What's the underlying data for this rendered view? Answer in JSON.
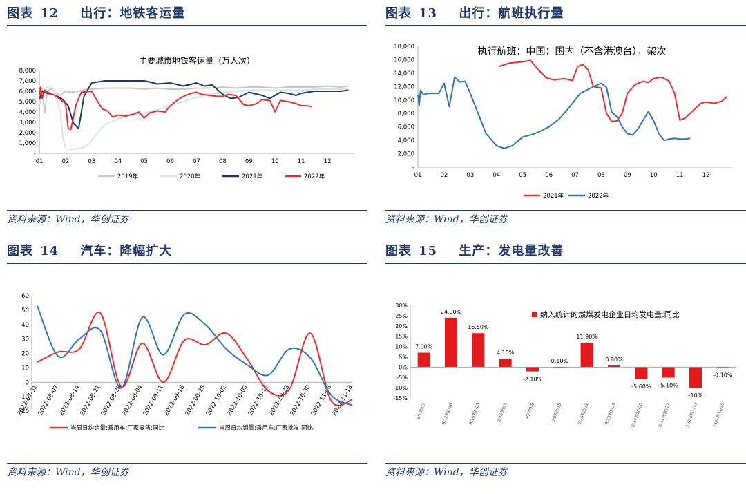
{
  "panels": [
    {
      "fig_label": "图表",
      "fig_num": "12",
      "fig_title": "出行：地铁客运量",
      "source": "资料来源：Wind，华创证券",
      "chart_data": {
        "type": "line",
        "title": "主要城市地铁客运量（万人次）",
        "x_ticks": [
          "01",
          "02",
          "03",
          "04",
          "05",
          "06",
          "07",
          "08",
          "09",
          "10",
          "11",
          "12"
        ],
        "x_range": [
          1,
          13
        ],
        "y_ticks": [
          "8,000",
          "7,000",
          "6,000",
          "5,000",
          "4,000",
          "3,000",
          "2,000",
          "1,000",
          "-"
        ],
        "ylim": [
          0,
          8000
        ],
        "legend_position": "bottom",
        "series": [
          {
            "name": "2019年",
            "color": "#c8c8c8",
            "x": [
              1.0,
              1.1,
              1.2,
              1.3,
              1.4,
              1.5,
              1.6,
              1.8,
              2.0,
              2.2,
              2.5,
              2.8,
              3.0,
              3.5,
              4.0,
              4.5,
              5.0,
              5.5,
              6.0,
              6.5,
              7.0,
              7.5,
              8.0,
              8.5,
              9.0,
              9.5,
              10.0,
              10.5,
              11.0,
              11.5,
              12.0,
              12.5,
              12.8
            ],
            "y": [
              4500,
              6300,
              3900,
              6000,
              6200,
              6200,
              5900,
              5600,
              6000,
              5900,
              6000,
              6200,
              6200,
              6300,
              6300,
              6300,
              6200,
              6300,
              6200,
              6200,
              6300,
              6300,
              6400,
              6300,
              6400,
              6400,
              6300,
              6400,
              6400,
              6400,
              6500,
              6400,
              6500
            ]
          },
          {
            "name": "2020年",
            "color": "#d6e4f0",
            "x": [
              1.0,
              1.2,
              1.4,
              1.6,
              1.8,
              1.9,
              2.0,
              2.1,
              2.3,
              2.6,
              2.9,
              3.2,
              3.5,
              4.0,
              4.5,
              5.0,
              5.5,
              6.0,
              6.5,
              7.0,
              7.5,
              8.0,
              8.5,
              9.0,
              9.5,
              10.0,
              10.5,
              11.0,
              11.5,
              12.0,
              12.5,
              12.8
            ],
            "y": [
              4800,
              6300,
              6500,
              6000,
              4000,
              1500,
              500,
              400,
              400,
              500,
              900,
              1900,
              2800,
              3300,
              3700,
              3900,
              4200,
              4600,
              5000,
              5400,
              5700,
              5900,
              6000,
              6100,
              6100,
              6100,
              6100,
              6100,
              6200,
              6200,
              6200,
              6200
            ]
          },
          {
            "name": "2021年",
            "color": "#1f3864",
            "x": [
              1.0,
              1.1,
              1.3,
              1.5,
              1.7,
              1.9,
              2.1,
              2.3,
              2.5,
              2.7,
              3.0,
              3.5,
              4.0,
              4.5,
              5.0,
              5.2,
              5.5,
              6.0,
              6.5,
              7.0,
              7.3,
              7.6,
              8.0,
              8.3,
              8.6,
              9.0,
              9.5,
              9.8,
              10.0,
              10.2,
              10.5,
              10.8,
              11.0,
              11.5,
              12.0,
              12.5,
              12.8
            ],
            "y": [
              5200,
              6000,
              5800,
              5700,
              5500,
              5200,
              4600,
              2900,
              2400,
              5500,
              6800,
              7000,
              7000,
              7000,
              7000,
              6900,
              6700,
              6800,
              6500,
              6800,
              6500,
              6600,
              5700,
              5300,
              5400,
              5900,
              5600,
              5300,
              5600,
              5900,
              5800,
              5600,
              5800,
              6000,
              6000,
              6000,
              6100
            ]
          },
          {
            "name": "2022年",
            "color": "#ee2b2b",
            "x": [
              1.0,
              1.05,
              1.1,
              1.2,
              1.4,
              1.6,
              1.8,
              2.0,
              2.1,
              2.2,
              2.4,
              2.6,
              3.0,
              3.2,
              3.4,
              3.6,
              3.8,
              4.0,
              4.3,
              4.6,
              4.8,
              5.0,
              5.2,
              5.5,
              5.8,
              6.0,
              6.3,
              6.5,
              6.8,
              7.0,
              7.2,
              7.5,
              7.8,
              8.0,
              8.2,
              8.5,
              8.8,
              9.0,
              9.3,
              9.5,
              9.8,
              10.0,
              10.2,
              10.5,
              10.8,
              11.0,
              11.2,
              11.4
            ],
            "y": [
              5600,
              6400,
              5300,
              6100,
              5800,
              5600,
              5200,
              4800,
              2400,
              2300,
              4700,
              5900,
              6000,
              5100,
              4300,
              4100,
              3500,
              3700,
              3600,
              3800,
              4000,
              3400,
              3900,
              4100,
              4000,
              4600,
              5200,
              5500,
              5800,
              5900,
              5700,
              5600,
              5500,
              5500,
              5700,
              5600,
              4700,
              4600,
              4800,
              5200,
              5100,
              4000,
              5100,
              5000,
              4800,
              4600,
              4600,
              4500
            ]
          }
        ]
      }
    },
    {
      "fig_label": "图表",
      "fig_num": "13",
      "fig_title": "出行：航班执行量",
      "source": "资料来源：Wind，华创证券",
      "chart_data": {
        "type": "line",
        "title": "执行航班：中国：国内（不含港澳台），架次",
        "x_ticks": [
          "01",
          "02",
          "03",
          "04",
          "05",
          "06",
          "07",
          "08",
          "09",
          "10",
          "11",
          "12"
        ],
        "x_range": [
          1,
          13
        ],
        "y_ticks": [
          "18,000",
          "16,000",
          "14,000",
          "12,000",
          "10,000",
          "8,000",
          "6,000",
          "4,000",
          "2,000",
          "-"
        ],
        "ylim": [
          0,
          18000
        ],
        "legend_position": "bottom",
        "series": [
          {
            "name": "2021年",
            "color": "#ee2b2b",
            "x": [
              4.1,
              4.5,
              5.0,
              5.3,
              5.6,
              5.9,
              6.2,
              6.6,
              6.9,
              7.1,
              7.3,
              7.5,
              7.7,
              8.0,
              8.2,
              8.4,
              8.6,
              8.8,
              9.0,
              9.3,
              9.6,
              9.8,
              10.0,
              10.3,
              10.6,
              10.8,
              11.0,
              11.2,
              11.5,
              11.8,
              12.0,
              12.3,
              12.6,
              12.8
            ],
            "y": [
              15000,
              15500,
              15700,
              15900,
              14500,
              13300,
              13000,
              13200,
              12900,
              15000,
              15300,
              14500,
              12000,
              11800,
              8000,
              6800,
              6900,
              8000,
              11000,
              12300,
              12800,
              12600,
              13200,
              13400,
              12800,
              11000,
              7000,
              7300,
              8400,
              9500,
              9700,
              9500,
              9800,
              10500
            ]
          },
          {
            "name": "2022年",
            "color": "#2e75b6",
            "x": [
              1.0,
              1.05,
              1.1,
              1.2,
              1.4,
              1.6,
              1.8,
              2.0,
              2.2,
              2.4,
              2.6,
              2.8,
              3.0,
              3.3,
              3.6,
              4.0,
              4.3,
              4.6,
              5.0,
              5.3,
              5.6,
              6.0,
              6.4,
              6.8,
              7.2,
              7.6,
              8.0,
              8.2,
              8.4,
              8.6,
              8.8,
              9.0,
              9.2,
              9.4,
              9.6,
              9.8,
              10.0,
              10.2,
              10.4,
              10.6,
              10.8,
              11.0,
              11.2,
              11.4
            ],
            "y": [
              10800,
              9200,
              11500,
              10800,
              11000,
              11000,
              11000,
              12500,
              9000,
              13400,
              12700,
              12800,
              11000,
              8000,
              5000,
              3200,
              2800,
              3200,
              4500,
              4800,
              5200,
              6000,
              7200,
              9000,
              11000,
              11800,
              12500,
              11900,
              8200,
              7500,
              6000,
              5000,
              4800,
              5700,
              7000,
              8300,
              6900,
              5000,
              4000,
              4200,
              4300,
              4200,
              4200,
              4300
            ]
          }
        ]
      }
    },
    {
      "fig_label": "图表",
      "fig_num": "14",
      "fig_title": "汽车：降幅扩大",
      "source": "资料来源：Wind，华创证券",
      "chart_data": {
        "type": "line",
        "title": "",
        "categories": [
          "2022-07-31",
          "2022-08-07",
          "2022-08-14",
          "2022-08-21",
          "2022-08-28",
          "2022-09-04",
          "2022-09-11",
          "2022-09-18",
          "2022-09-25",
          "2022-10-02",
          "2022-10-09",
          "2022-10-16",
          "2022-10-23",
          "2022-10-30",
          "2022-11-06",
          "2022-11-13"
        ],
        "y_ticks": [
          "60",
          "50",
          "40",
          "30",
          "20",
          "10",
          "0",
          "-10",
          "-20"
        ],
        "ylim": [
          -20,
          60
        ],
        "legend_position": "bottom",
        "series": [
          {
            "name": "当周日均销量:乘用车:厂家零售:同比",
            "color": "#ee2b2b",
            "values": [
              14,
              21,
              23,
              48,
              -3,
              27,
              0,
              29,
              26,
              34,
              16,
              -6,
              -5,
              34,
              -13,
              -12
            ]
          },
          {
            "name": "当周日均销量:乘用车:厂家批发:同比",
            "color": "#2e75b6",
            "values": [
              53,
              18,
              30,
              36,
              -4,
              45,
              19,
              47,
              40,
              23,
              12,
              5,
              23,
              17,
              -9,
              -16
            ]
          }
        ]
      }
    },
    {
      "fig_label": "图表",
      "fig_num": "15",
      "fig_title": "生产：发电量改善",
      "source": "资料来源：Wind，华创证券",
      "chart_data": {
        "type": "bar",
        "title": "",
        "categories": [
          "8/1到8/7",
          "8/12到8/18",
          "8/19到8/25",
          "8/26到9/1",
          "9/2到9/8",
          "9/9到9/15",
          "9/16到9/22",
          "9/23到9/29",
          "10/14到10/20",
          "10/21到10/27",
          "10/28到11/3",
          "11/4到11/10"
        ],
        "values": [
          7.0,
          24.0,
          16.5,
          4.1,
          -2.1,
          0.1,
          11.9,
          0.8,
          -5.6,
          -5.1,
          -10.0,
          -0.1
        ],
        "value_labels": [
          "7.00%",
          "24.00%",
          "16.50%",
          "4.10%",
          "-2.10%",
          "0.10%",
          "11.90%",
          "0.80%",
          "-5.60%",
          "-5.10%",
          "-10%",
          "-0.10%"
        ],
        "y_ticks": [
          "30%",
          "25%",
          "20%",
          "15%",
          "10%",
          "5%",
          "0%",
          "-5%",
          "-10%",
          "-15%"
        ],
        "ylim": [
          -15,
          30
        ],
        "legend_position": "top-right",
        "series": [
          {
            "name": "纳入统计的燃煤发电企业日均发电量:同比",
            "color": "#e31a1c"
          }
        ]
      }
    }
  ]
}
